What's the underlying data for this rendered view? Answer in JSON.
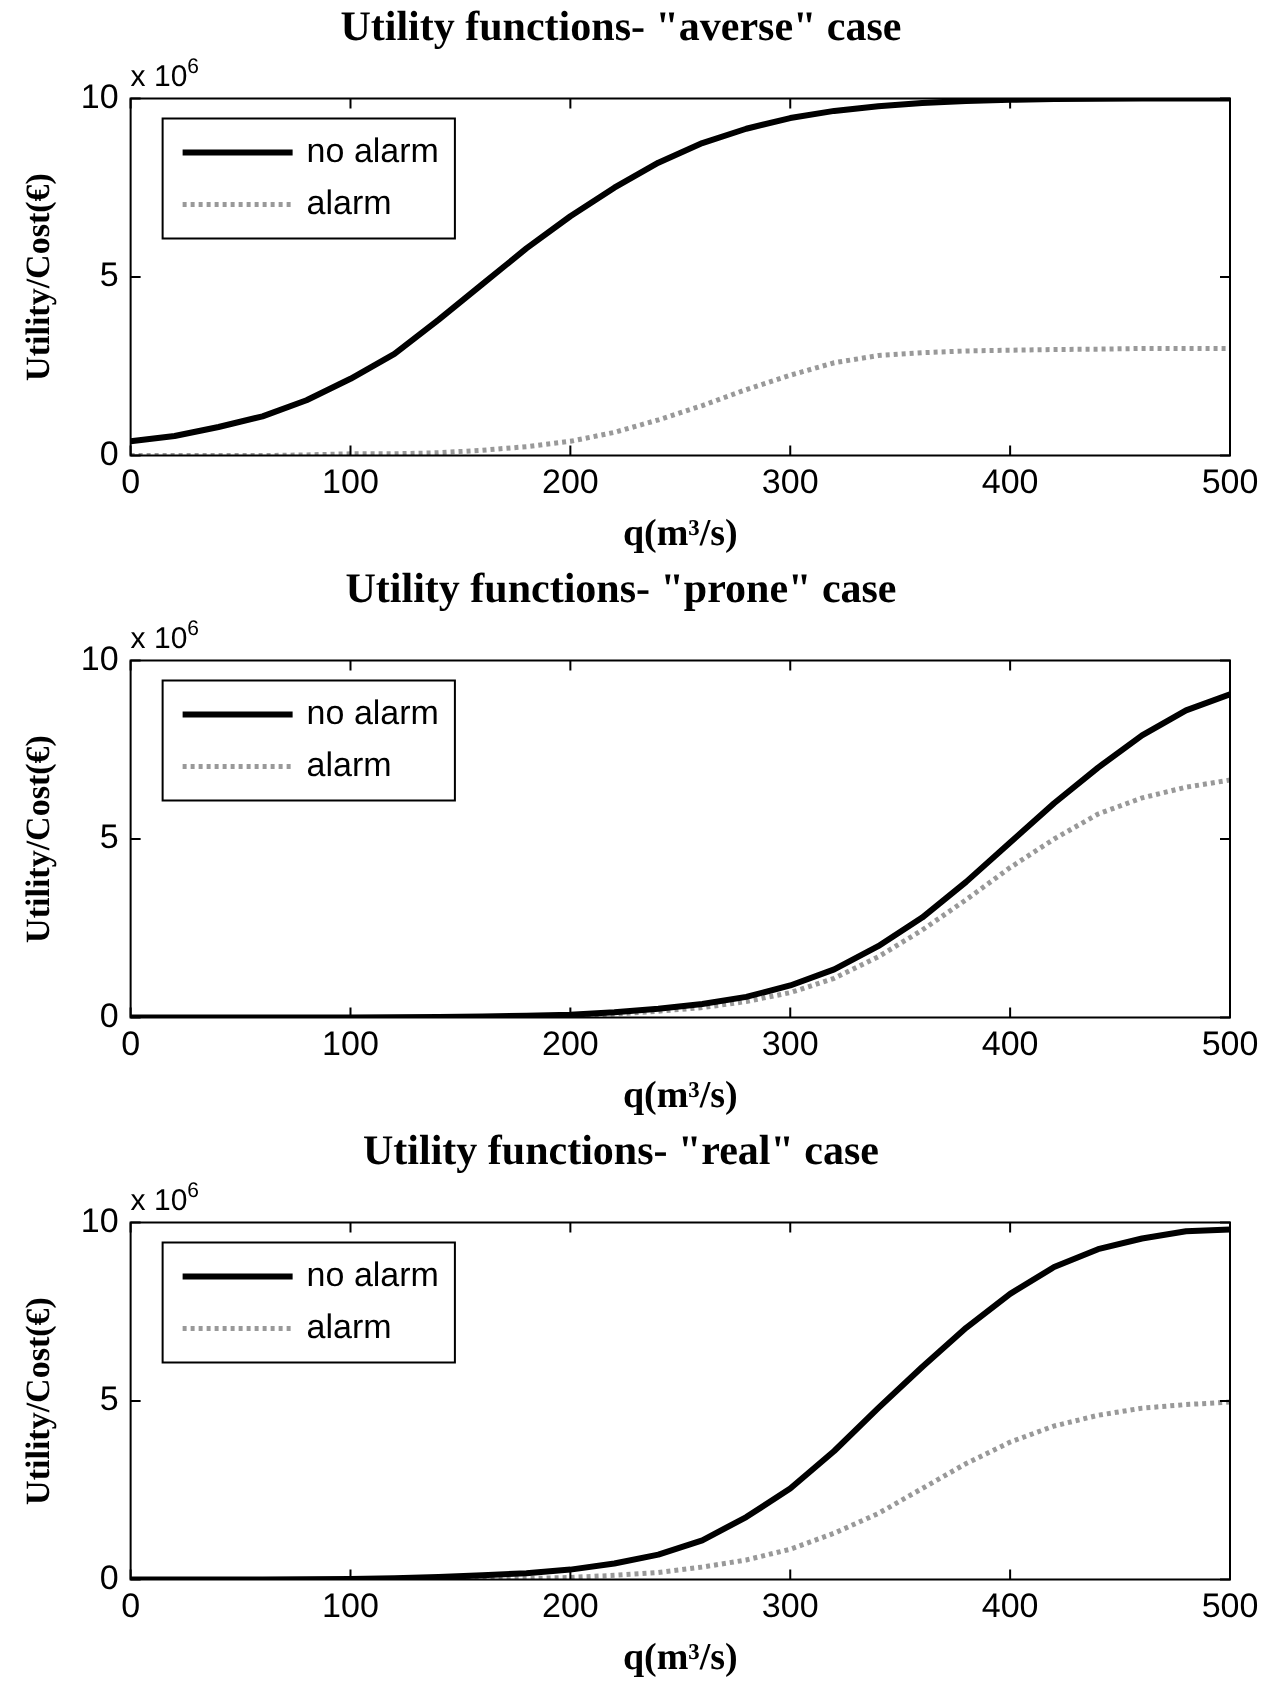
{
  "chart_data": [
    {
      "type": "line",
      "title": "Utility functions- \"averse\" case",
      "xlabel": "q(m³/s)",
      "ylabel": "Utility/Cost(€)",
      "annotations": [
        "x 10$^{6}$"
      ],
      "x": [
        0,
        20,
        40,
        60,
        80,
        100,
        120,
        140,
        160,
        180,
        200,
        220,
        240,
        260,
        280,
        300,
        320,
        340,
        360,
        380,
        400,
        420,
        440,
        460,
        480,
        500
      ],
      "series": [
        {
          "name": "no alarm",
          "color": "#000000",
          "line_style": "solid",
          "values": [
            0.4,
            0.55,
            0.8,
            1.1,
            1.55,
            2.15,
            2.85,
            3.8,
            4.8,
            5.8,
            6.7,
            7.5,
            8.2,
            8.75,
            9.15,
            9.45,
            9.65,
            9.78,
            9.87,
            9.93,
            9.96,
            9.98,
            9.99,
            10,
            10,
            10
          ]
        },
        {
          "name": "alarm",
          "color": "#999999",
          "line_style": "dotted",
          "values": [
            0,
            0,
            0,
            0,
            0.02,
            0.05,
            0.05,
            0.08,
            0.15,
            0.25,
            0.4,
            0.65,
            1.0,
            1.4,
            1.85,
            2.25,
            2.6,
            2.8,
            2.88,
            2.93,
            2.95,
            2.97,
            2.98,
            3,
            3,
            3
          ]
        }
      ],
      "xlim": [
        0,
        500
      ],
      "xticks": [
        0,
        100,
        200,
        300,
        400,
        500
      ],
      "ylim": [
        0,
        10
      ],
      "yticks": [
        0,
        5,
        10
      ],
      "grid": false,
      "legend": "top left",
      "marker": "none"
    },
    {
      "type": "line",
      "title": "Utility functions- \"prone\" case",
      "xlabel": "q(m³/s)",
      "ylabel": "Utility/Cost(€)",
      "annotations": [
        "x 10$^{6}$"
      ],
      "x": [
        0,
        20,
        40,
        60,
        80,
        100,
        120,
        140,
        160,
        180,
        200,
        220,
        240,
        260,
        280,
        300,
        320,
        340,
        360,
        380,
        400,
        420,
        440,
        460,
        480,
        500
      ],
      "series": [
        {
          "name": "no alarm",
          "color": "#000000",
          "line_style": "solid",
          "values": [
            0,
            0,
            0,
            0,
            0,
            0,
            0.01,
            0.02,
            0.03,
            0.05,
            0.08,
            0.15,
            0.25,
            0.38,
            0.58,
            0.9,
            1.35,
            2.0,
            2.8,
            3.8,
            4.9,
            6.0,
            7.0,
            7.9,
            8.6,
            9.05
          ]
        },
        {
          "name": "alarm",
          "color": "#999999",
          "line_style": "dotted",
          "values": [
            0,
            0,
            0,
            0,
            0,
            0,
            0,
            0.01,
            0.02,
            0.03,
            0.05,
            0.1,
            0.18,
            0.28,
            0.45,
            0.7,
            1.1,
            1.7,
            2.45,
            3.3,
            4.2,
            5.0,
            5.7,
            6.15,
            6.45,
            6.65
          ]
        }
      ],
      "xlim": [
        0,
        500
      ],
      "xticks": [
        0,
        100,
        200,
        300,
        400,
        500
      ],
      "ylim": [
        0,
        10
      ],
      "yticks": [
        0,
        5,
        10
      ],
      "grid": false,
      "legend": "top left",
      "marker": "none"
    },
    {
      "type": "line",
      "title": "Utility functions- \"real\" case",
      "xlabel": "q(m³/s)",
      "ylabel": "Utility/Cost(€)",
      "annotations": [
        "x 10$^{6}$"
      ],
      "x": [
        0,
        20,
        40,
        60,
        80,
        100,
        120,
        140,
        160,
        180,
        200,
        220,
        240,
        260,
        280,
        300,
        320,
        340,
        360,
        380,
        400,
        420,
        440,
        460,
        480,
        500
      ],
      "series": [
        {
          "name": "no alarm",
          "color": "#000000",
          "line_style": "solid",
          "values": [
            0,
            0,
            0,
            0,
            0.01,
            0.02,
            0.04,
            0.07,
            0.12,
            0.18,
            0.28,
            0.45,
            0.7,
            1.1,
            1.75,
            2.55,
            3.6,
            4.8,
            5.95,
            7.05,
            8.0,
            8.75,
            9.25,
            9.55,
            9.75,
            9.8
          ]
        },
        {
          "name": "alarm",
          "color": "#999999",
          "line_style": "dotted",
          "values": [
            0,
            0,
            0,
            0,
            0,
            0,
            0,
            0.01,
            0.02,
            0.03,
            0.06,
            0.12,
            0.2,
            0.35,
            0.55,
            0.85,
            1.3,
            1.85,
            2.55,
            3.25,
            3.85,
            4.3,
            4.6,
            4.8,
            4.9,
            4.97
          ]
        }
      ],
      "xlim": [
        0,
        500
      ],
      "xticks": [
        0,
        100,
        200,
        300,
        400,
        500
      ],
      "ylim": [
        0,
        10
      ],
      "yticks": [
        0,
        5,
        10
      ],
      "grid": false,
      "legend": "top left",
      "marker": "none"
    }
  ]
}
